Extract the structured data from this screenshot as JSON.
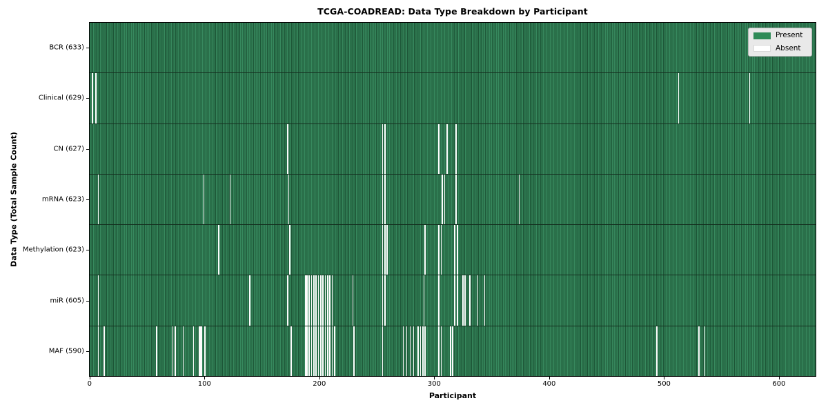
{
  "figure": {
    "title": "TCGA-COADREAD: Data Type Breakdown by Participant",
    "xlabel": "Participant",
    "ylabel": "Data Type (Total Sample Count)"
  },
  "chart_data": {
    "type": "heatmap",
    "title": "TCGA-COADREAD: Data Type Breakdown by Participant",
    "xlabel": "Participant",
    "ylabel": "Data Type (Total Sample Count)",
    "n_participants": 633,
    "xlim": [
      0,
      633
    ],
    "x_ticks": [
      0,
      100,
      200,
      300,
      400,
      500,
      600
    ],
    "grid": false,
    "legend_position": "upper right",
    "legend": [
      {
        "label": "Present",
        "color": "#2e8b57"
      },
      {
        "label": "Absent",
        "color": "#ffffff"
      }
    ],
    "colors": {
      "present": "#2e8b57",
      "present_stripe_light": "#37895e",
      "present_stripe_dark": "#1d5637",
      "absent": "#ffffff",
      "legend_bg": "#e9e9e9"
    },
    "rows": [
      {
        "name": "BCR",
        "total": 633,
        "label": "BCR (633)",
        "absent_indices": []
      },
      {
        "name": "Clinical",
        "total": 629,
        "label": "Clinical (629)",
        "absent_indices": [
          2,
          5,
          513,
          575
        ]
      },
      {
        "name": "CN",
        "total": 627,
        "label": "CN (627)",
        "absent_indices": [
          172,
          255,
          257,
          304,
          311,
          319
        ]
      },
      {
        "name": "mRNA",
        "total": 623,
        "label": "mRNA (623)",
        "absent_indices": [
          7,
          99,
          122,
          173,
          255,
          257,
          307,
          309,
          319,
          374
        ]
      },
      {
        "name": "Methylation",
        "total": 623,
        "label": "Methylation (623)",
        "absent_indices": [
          112,
          174,
          255,
          257,
          259,
          292,
          304,
          306,
          318,
          320
        ]
      },
      {
        "name": "miR",
        "total": 605,
        "label": "miR (605)",
        "absent_indices": [
          7,
          139,
          172,
          188,
          189,
          191,
          193,
          195,
          197,
          199,
          201,
          203,
          205,
          207,
          209,
          211,
          229,
          255,
          257,
          291,
          304,
          318,
          320,
          325,
          327,
          331,
          338,
          344
        ]
      },
      {
        "name": "MAF",
        "total": 590,
        "label": "MAF (590)",
        "absent_indices": [
          7,
          12,
          58,
          72,
          74,
          81,
          90,
          95,
          96,
          97,
          100,
          175,
          188,
          189,
          191,
          193,
          195,
          197,
          199,
          201,
          203,
          205,
          207,
          209,
          211,
          213,
          230,
          255,
          273,
          276,
          279,
          282,
          286,
          288,
          290,
          292,
          304,
          306,
          314,
          316,
          494,
          531,
          536
        ]
      }
    ]
  }
}
